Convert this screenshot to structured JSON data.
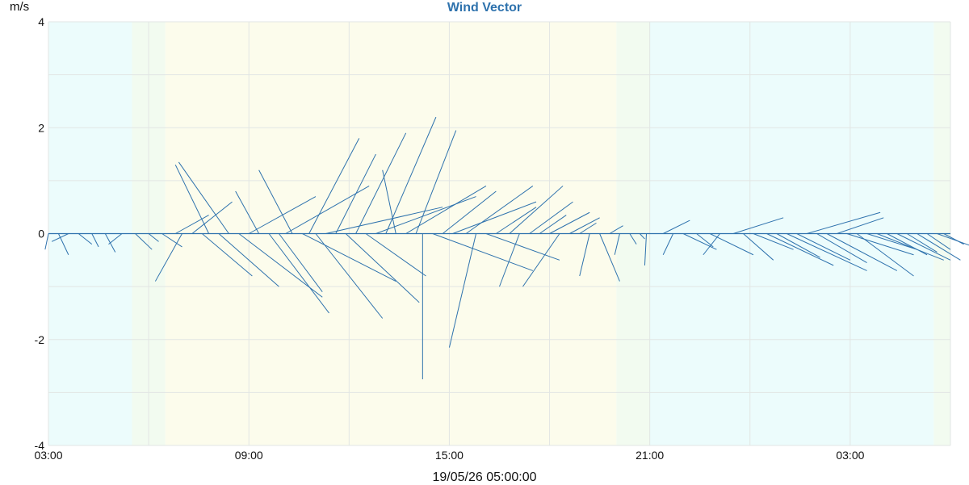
{
  "chart_data": {
    "type": "wind-vector",
    "title": "Wind Vector",
    "y_unit": "m/s",
    "x_caption": "19/05/26 05:00:00",
    "ylim": [
      -4,
      4
    ],
    "xlim_hours_from_0300": [
      0,
      27
    ],
    "y_ticks": [
      4,
      2,
      0,
      -2,
      -4
    ],
    "y_tick_labels": [
      "4",
      "2",
      "0",
      "-2",
      "-4"
    ],
    "x_ticks": [
      "03:00",
      "09:00",
      "15:00",
      "21:00",
      "03:00"
    ],
    "grid": true,
    "background_periods": [
      {
        "phase": "night",
        "start": "03:00",
        "end": "05:30",
        "color": "#ecfcfc"
      },
      {
        "phase": "dawn",
        "start": "05:30",
        "end": "06:30",
        "color": "#f2fbf0"
      },
      {
        "phase": "day",
        "start": "06:30",
        "end": "20:00",
        "color": "#fcfcec"
      },
      {
        "phase": "dusk",
        "start": "20:00",
        "end": "21:00",
        "color": "#f2fbf0"
      },
      {
        "phase": "night",
        "start": "21:00",
        "end": "05:30",
        "color": "#ecfcfc"
      },
      {
        "phase": "dawn",
        "start": "05:30",
        "end": "06:00",
        "color": "#f2fbf0"
      }
    ],
    "series": [
      {
        "line_color": "#2e72ad",
        "vectors": [
          [
            3.0,
            -0.1,
            -0.3
          ],
          [
            3.3,
            0.3,
            -0.4
          ],
          [
            3.6,
            -0.5,
            -0.15
          ],
          [
            3.9,
            0.4,
            -0.2
          ],
          [
            4.3,
            0.2,
            -0.25
          ],
          [
            4.7,
            0.3,
            -0.35
          ],
          [
            5.2,
            -0.4,
            -0.2
          ],
          [
            5.6,
            0.5,
            -0.3
          ],
          [
            6.0,
            0.3,
            -0.15
          ],
          [
            6.4,
            0.6,
            -0.25
          ],
          [
            6.8,
            1.0,
            0.35
          ],
          [
            7.0,
            -0.8,
            -0.9
          ],
          [
            7.3,
            1.2,
            0.6
          ],
          [
            7.6,
            1.5,
            -0.8
          ],
          [
            7.8,
            -1.0,
            1.3
          ],
          [
            8.1,
            1.8,
            -1.0
          ],
          [
            8.4,
            -1.5,
            1.35
          ],
          [
            8.7,
            2.5,
            -1.2
          ],
          [
            9.0,
            2.0,
            0.7
          ],
          [
            9.3,
            -0.7,
            0.8
          ],
          [
            9.6,
            1.8,
            -1.5
          ],
          [
            9.9,
            1.3,
            -1.1
          ],
          [
            10.1,
            2.5,
            0.9
          ],
          [
            10.3,
            -1.0,
            1.2
          ],
          [
            10.6,
            2.8,
            -0.9
          ],
          [
            10.8,
            1.5,
            1.8
          ],
          [
            11.0,
            2.0,
            -1.6
          ],
          [
            11.3,
            3.5,
            0.5
          ],
          [
            11.6,
            1.2,
            1.5
          ],
          [
            11.9,
            2.2,
            -1.3
          ],
          [
            12.2,
            1.5,
            1.9
          ],
          [
            12.5,
            1.8,
            -0.8
          ],
          [
            12.8,
            3.0,
            0.7
          ],
          [
            13.1,
            1.5,
            2.2
          ],
          [
            13.4,
            -0.4,
            1.2
          ],
          [
            13.7,
            2.4,
            0.9
          ],
          [
            14.0,
            1.2,
            1.95
          ],
          [
            14.2,
            0.0,
            -2.75
          ],
          [
            14.5,
            3.0,
            -0.7
          ],
          [
            14.8,
            1.6,
            0.8
          ],
          [
            15.1,
            2.5,
            0.6
          ],
          [
            15.5,
            2.0,
            0.9
          ],
          [
            15.8,
            -0.8,
            -2.15
          ],
          [
            16.1,
            2.2,
            -0.5
          ],
          [
            16.4,
            1.2,
            0.5
          ],
          [
            16.8,
            1.6,
            0.9
          ],
          [
            17.1,
            -0.6,
            -1.0
          ],
          [
            17.4,
            1.3,
            0.6
          ],
          [
            17.7,
            0.8,
            0.35
          ],
          [
            18.0,
            1.2,
            0.4
          ],
          [
            18.3,
            -1.1,
            -1.0
          ],
          [
            18.6,
            0.9,
            0.3
          ],
          [
            18.9,
            0.5,
            0.2
          ],
          [
            19.2,
            -0.3,
            -0.8
          ],
          [
            19.5,
            0.6,
            -0.9
          ],
          [
            19.8,
            0.4,
            0.15
          ],
          [
            20.1,
            -0.15,
            -0.4
          ],
          [
            20.4,
            0.2,
            -0.2
          ],
          [
            20.7,
            0.15,
            -0.1
          ],
          [
            20.9,
            -0.05,
            -0.6
          ],
          [
            21.4,
            0.8,
            0.25
          ],
          [
            21.7,
            -0.3,
            -0.4
          ],
          [
            22.0,
            1.0,
            -0.3
          ],
          [
            22.4,
            0.5,
            -0.25
          ],
          [
            22.8,
            1.3,
            -0.4
          ],
          [
            23.1,
            -0.5,
            -0.4
          ],
          [
            23.5,
            1.5,
            0.3
          ],
          [
            23.8,
            0.9,
            -0.5
          ],
          [
            24.1,
            1.2,
            -0.3
          ],
          [
            24.5,
            2.0,
            -0.6
          ],
          [
            24.8,
            1.3,
            -0.45
          ],
          [
            25.1,
            2.4,
            -0.7
          ],
          [
            25.4,
            1.6,
            -0.5
          ],
          [
            25.7,
            2.2,
            0.4
          ],
          [
            26.0,
            1.5,
            -0.55
          ],
          [
            26.3,
            2.1,
            -0.7
          ],
          [
            26.6,
            1.4,
            0.3
          ],
          [
            26.9,
            2.0,
            -0.4
          ],
          [
            27.2,
            1.7,
            -0.8
          ],
          [
            27.5,
            1.5,
            -0.3
          ],
          [
            27.8,
            2.0,
            -0.5
          ],
          [
            28.1,
            1.2,
            -0.4
          ],
          [
            28.4,
            1.6,
            -0.5
          ],
          [
            28.7,
            0.9,
            -0.35
          ],
          [
            29.0,
            1.3,
            -0.5
          ],
          [
            29.3,
            0.7,
            -0.3
          ],
          [
            29.6,
            1.1,
            -0.25
          ],
          [
            29.8,
            0.6,
            -0.2
          ]
        ]
      }
    ]
  }
}
